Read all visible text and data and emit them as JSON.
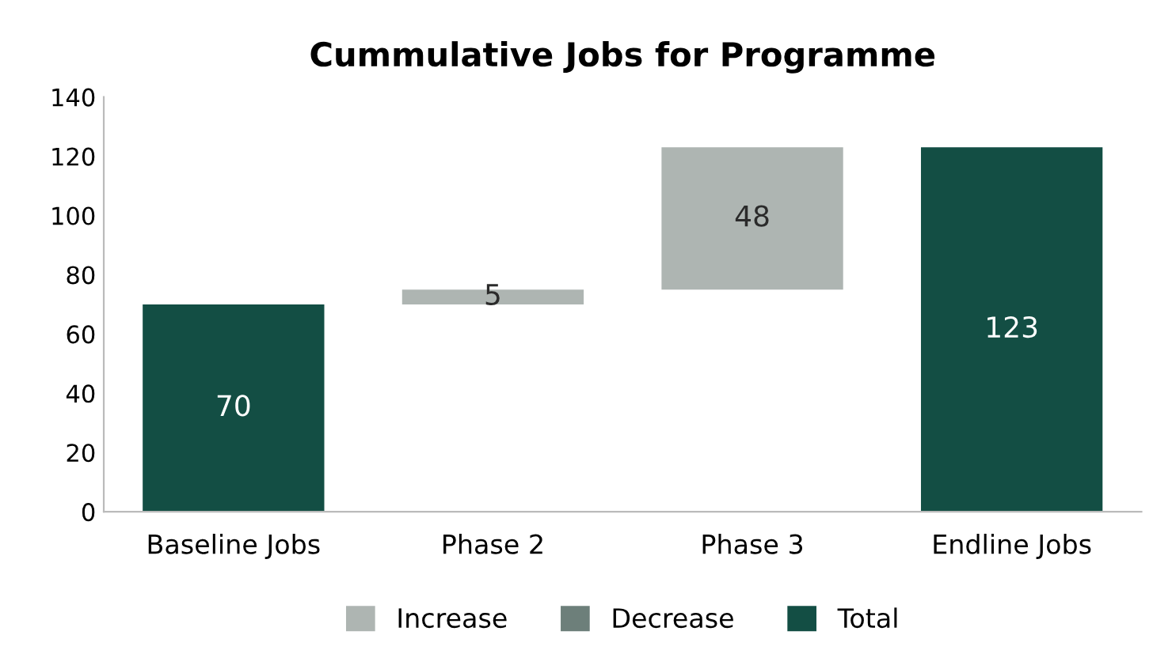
{
  "chart_data": {
    "type": "bar",
    "title": "Cummulative Jobs for Programme",
    "categories": [
      "Baseline Jobs",
      "Phase 2",
      "Phase 3",
      "Endline Jobs"
    ],
    "series": [
      {
        "name": "Increase",
        "color": "#aeb5b2",
        "values": [
          null,
          5,
          48,
          null
        ],
        "base": [
          null,
          70,
          75,
          null
        ],
        "value_labels": [
          null,
          "5",
          "48",
          null
        ]
      },
      {
        "name": "Decrease",
        "color": "#6d7f7a",
        "values": [
          null,
          null,
          null,
          null
        ]
      },
      {
        "name": "Total",
        "color": "#134e44",
        "values": [
          70,
          null,
          null,
          123
        ],
        "base": [
          0,
          null,
          null,
          0
        ],
        "value_labels": [
          "70",
          null,
          null,
          "123"
        ]
      }
    ],
    "ylim": [
      0,
      140
    ],
    "yticks": [
      0,
      20,
      40,
      60,
      80,
      100,
      120,
      140
    ],
    "grid": false,
    "legend": "bottom"
  }
}
